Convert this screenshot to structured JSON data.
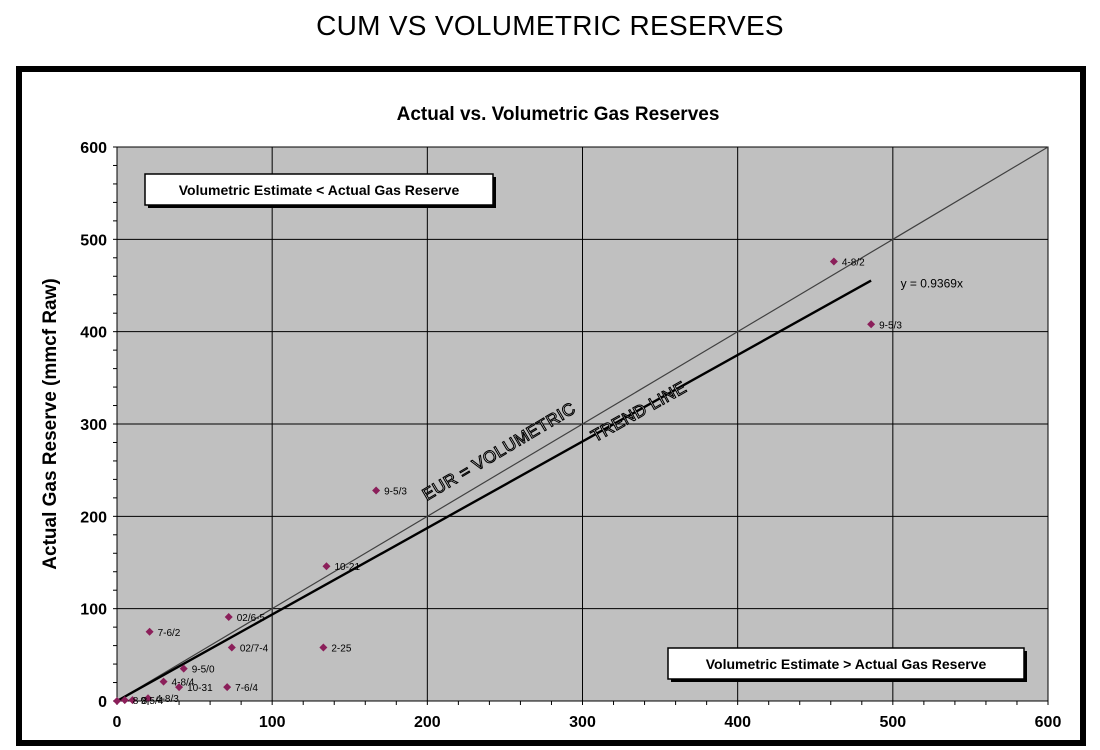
{
  "page": {
    "title": "CUM VS VOLUMETRIC RESERVES"
  },
  "chart_data": {
    "type": "scatter",
    "title": "Actual vs. Volumetric Gas Reserves",
    "xlabel": "",
    "ylabel": "Actual Gas Reserve (mmcf Raw)",
    "xlim": [
      0,
      600
    ],
    "ylim": [
      0,
      600
    ],
    "xticks": [
      "0",
      "100",
      "200",
      "300",
      "400",
      "500",
      "600"
    ],
    "yticks": [
      "0",
      "100",
      "200",
      "300",
      "400",
      "500",
      "600"
    ],
    "grid": true,
    "plot_background": "#c0c0c0",
    "marker_color": "#8b1f5a",
    "points": [
      {
        "label": "4-8/2",
        "x": 462,
        "y": 476
      },
      {
        "label": "9-5/3",
        "x": 486,
        "y": 408
      },
      {
        "label": "9-5/3",
        "x": 167,
        "y": 228
      },
      {
        "label": "10-21",
        "x": 135,
        "y": 146
      },
      {
        "label": "02/6-5",
        "x": 72,
        "y": 91
      },
      {
        "label": "7-6/2",
        "x": 21,
        "y": 75
      },
      {
        "label": "02/7-4",
        "x": 74,
        "y": 58
      },
      {
        "label": "2-25",
        "x": 133,
        "y": 58
      },
      {
        "label": "9-5/0",
        "x": 43,
        "y": 35
      },
      {
        "label": "4-8/4",
        "x": 30,
        "y": 21
      },
      {
        "label": "10-31",
        "x": 40,
        "y": 15
      },
      {
        "label": "7-6/4",
        "x": 71,
        "y": 15
      },
      {
        "label": "4-8/3",
        "x": 20,
        "y": 3
      },
      {
        "label": "9-5/4",
        "x": 10,
        "y": 1
      },
      {
        "label": "8-8",
        "x": 5,
        "y": 1
      },
      {
        "label": "",
        "x": 0,
        "y": 0
      }
    ],
    "reference_line": {
      "label": "EUR = VOLUMETRIC",
      "slope": 1,
      "x_range": [
        0,
        600
      ]
    },
    "trend_line": {
      "label": "TREND LINE",
      "equation": "y = 0.9369x",
      "slope": 0.9369,
      "x_range": [
        0,
        486
      ]
    },
    "annotations": [
      "Volumetric Estimate < Actual Gas Reserve",
      "Volumetric Estimate > Actual Gas Reserve"
    ]
  }
}
